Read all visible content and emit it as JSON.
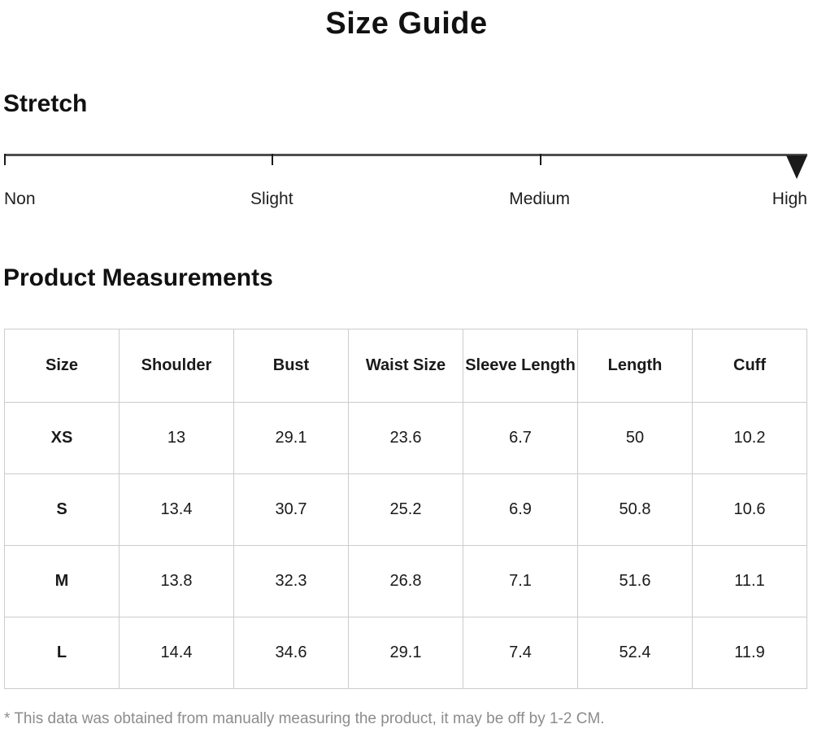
{
  "page": {
    "title": "Size Guide"
  },
  "stretch": {
    "heading": "Stretch",
    "levels": [
      {
        "label": "Non"
      },
      {
        "label": "Slight"
      },
      {
        "label": "Medium"
      },
      {
        "label": "High"
      }
    ],
    "selected": "High",
    "line_color": "#4d4d4d",
    "marker_color": "#1a1a1a"
  },
  "measurements": {
    "heading": "Product Measurements",
    "columns": [
      "Size",
      "Shoulder",
      "Bust",
      "Waist Size",
      "Sleeve Length",
      "Length",
      "Cuff"
    ],
    "rows": [
      {
        "size": "XS",
        "values": [
          "13",
          "29.1",
          "23.6",
          "6.7",
          "50",
          "10.2"
        ]
      },
      {
        "size": "S",
        "values": [
          "13.4",
          "30.7",
          "25.2",
          "6.9",
          "50.8",
          "10.6"
        ]
      },
      {
        "size": "M",
        "values": [
          "13.8",
          "32.3",
          "26.8",
          "7.1",
          "51.6",
          "11.1"
        ]
      },
      {
        "size": "L",
        "values": [
          "14.4",
          "34.6",
          "29.1",
          "7.4",
          "52.4",
          "11.9"
        ]
      }
    ]
  },
  "footnote": "* This data was obtained from manually measuring the product, it may be off by 1-2 CM."
}
